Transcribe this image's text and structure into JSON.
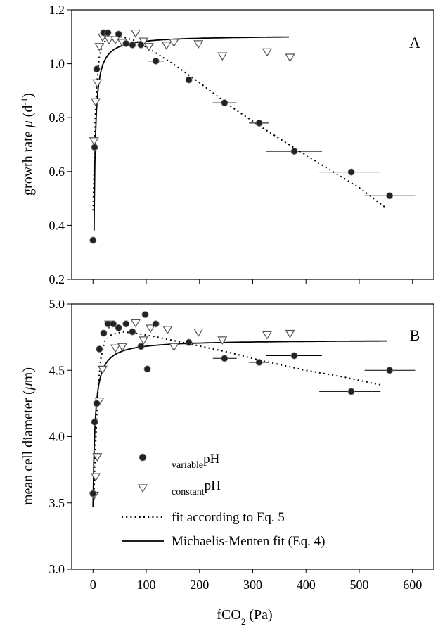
{
  "figure": {
    "x_label": {
      "main": "fCO",
      "sub": "2",
      "rest": " (Pa)"
    },
    "x_ticks": [
      "0",
      "100",
      "200",
      "300",
      "400",
      "500",
      "600"
    ],
    "x_tick_values": [
      0,
      100,
      200,
      300,
      400,
      500,
      600
    ]
  },
  "legend": {
    "variable": {
      "sub": "variable",
      "main": "pH"
    },
    "constant": {
      "sub": "constant",
      "main": "pH"
    },
    "eq5_label": "fit according to Eq. 5",
    "mm_label": "Michaelis-Menten fit (Eq. 4)"
  },
  "chart_data": [
    {
      "type": "scatter",
      "panel_label": "A",
      "ylabel": {
        "main": "growth rate ",
        "italic": "μ",
        "unit_open": " (d",
        "sup": "-1",
        "unit_close": ")"
      },
      "xlim": [
        -40,
        640
      ],
      "ylim": [
        0.2,
        1.2
      ],
      "x_ticks": [
        0,
        100,
        200,
        300,
        400,
        500,
        600
      ],
      "y_ticks": [
        0.2,
        0.4,
        0.6,
        0.8,
        1.0,
        1.2
      ],
      "y_tick_labels": [
        "0.2",
        "0.4",
        "0.6",
        "0.8",
        "1.0",
        "1.2"
      ],
      "series": [
        {
          "name": "variable pH",
          "marker": "filled-circle",
          "points": [
            {
              "x": 0,
              "y": 0.345
            },
            {
              "x": 3,
              "y": 0.69
            },
            {
              "x": 7,
              "y": 0.98
            },
            {
              "x": 20,
              "y": 1.115
            },
            {
              "x": 28,
              "y": 1.115
            },
            {
              "x": 48,
              "y": 1.11
            },
            {
              "x": 62,
              "y": 1.075
            },
            {
              "x": 74,
              "y": 1.07
            },
            {
              "x": 90,
              "y": 1.07
            },
            {
              "x": 118,
              "y": 1.01
            },
            {
              "x": 180,
              "y": 0.94
            },
            {
              "x": 247,
              "y": 0.855
            },
            {
              "x": 312,
              "y": 0.78
            },
            {
              "x": 378,
              "y": 0.675
            },
            {
              "x": 485,
              "y": 0.598
            },
            {
              "x": 557,
              "y": 0.51
            }
          ],
          "x_error": [
            {
              "x": 118,
              "lo": 103,
              "hi": 133
            },
            {
              "x": 247,
              "lo": 225,
              "hi": 270
            },
            {
              "x": 312,
              "lo": 293,
              "hi": 330
            },
            {
              "x": 378,
              "lo": 325,
              "hi": 430
            },
            {
              "x": 485,
              "lo": 425,
              "hi": 540
            },
            {
              "x": 557,
              "lo": 510,
              "hi": 605
            }
          ]
        },
        {
          "name": "constant pH",
          "marker": "open-triangle",
          "points": [
            {
              "x": 2,
              "y": 0.715
            },
            {
              "x": 5,
              "y": 0.86
            },
            {
              "x": 8,
              "y": 0.93
            },
            {
              "x": 12,
              "y": 1.065
            },
            {
              "x": 18,
              "y": 1.1
            },
            {
              "x": 30,
              "y": 1.09
            },
            {
              "x": 42,
              "y": 1.09
            },
            {
              "x": 55,
              "y": 1.08
            },
            {
              "x": 80,
              "y": 1.115
            },
            {
              "x": 95,
              "y": 1.085
            },
            {
              "x": 105,
              "y": 1.065
            },
            {
              "x": 138,
              "y": 1.07
            },
            {
              "x": 152,
              "y": 1.08
            },
            {
              "x": 198,
              "y": 1.075
            },
            {
              "x": 243,
              "y": 1.03
            },
            {
              "x": 327,
              "y": 1.045
            },
            {
              "x": 370,
              "y": 1.025
            }
          ]
        }
      ],
      "fits": {
        "mm": {
          "label": "Michaelis-Menten fit (Eq. 4)",
          "style": "solid",
          "vmax": 1.105,
          "k": 1.9,
          "x0": 1.0,
          "x_range": [
            2,
            370
          ]
        },
        "eq5": {
          "label": "fit according to Eq. 5",
          "style": "dotted",
          "points": [
            {
              "x": 0,
              "y": 0.455
            },
            {
              "x": 2,
              "y": 0.6
            },
            {
              "x": 4,
              "y": 0.79
            },
            {
              "x": 7,
              "y": 0.92
            },
            {
              "x": 12,
              "y": 1.03
            },
            {
              "x": 20,
              "y": 1.08
            },
            {
              "x": 35,
              "y": 1.1
            },
            {
              "x": 55,
              "y": 1.1
            },
            {
              "x": 80,
              "y": 1.085
            },
            {
              "x": 110,
              "y": 1.05
            },
            {
              "x": 150,
              "y": 1.0
            },
            {
              "x": 200,
              "y": 0.93
            },
            {
              "x": 260,
              "y": 0.84
            },
            {
              "x": 320,
              "y": 0.76
            },
            {
              "x": 380,
              "y": 0.685
            },
            {
              "x": 450,
              "y": 0.6
            },
            {
              "x": 500,
              "y": 0.54
            },
            {
              "x": 550,
              "y": 0.465
            }
          ]
        }
      }
    },
    {
      "type": "scatter",
      "panel_label": "B",
      "ylabel": {
        "main": "mean cell diameter (",
        "italic": "μ",
        "rest": "m)"
      },
      "xlim": [
        -40,
        640
      ],
      "ylim": [
        3.0,
        5.0
      ],
      "x_ticks": [
        0,
        100,
        200,
        300,
        400,
        500,
        600
      ],
      "y_ticks": [
        3.0,
        3.5,
        4.0,
        4.5,
        5.0
      ],
      "y_tick_labels": [
        "3.0",
        "3.5",
        "4.0",
        "4.5",
        "5.0"
      ],
      "series": [
        {
          "name": "variable pH",
          "marker": "filled-circle",
          "points": [
            {
              "x": 0,
              "y": 3.57
            },
            {
              "x": 3,
              "y": 4.11
            },
            {
              "x": 7,
              "y": 4.25
            },
            {
              "x": 12,
              "y": 4.66
            },
            {
              "x": 20,
              "y": 4.78
            },
            {
              "x": 28,
              "y": 4.85
            },
            {
              "x": 38,
              "y": 4.85
            },
            {
              "x": 48,
              "y": 4.82
            },
            {
              "x": 62,
              "y": 4.85
            },
            {
              "x": 74,
              "y": 4.79
            },
            {
              "x": 90,
              "y": 4.68
            },
            {
              "x": 98,
              "y": 4.92
            },
            {
              "x": 102,
              "y": 4.51
            },
            {
              "x": 118,
              "y": 4.85
            },
            {
              "x": 180,
              "y": 4.71
            },
            {
              "x": 247,
              "y": 4.59
            },
            {
              "x": 312,
              "y": 4.56
            },
            {
              "x": 378,
              "y": 4.61
            },
            {
              "x": 485,
              "y": 4.34
            },
            {
              "x": 557,
              "y": 4.5
            }
          ],
          "x_error": [
            {
              "x": 102,
              "lo": 96,
              "hi": 108
            },
            {
              "x": 247,
              "lo": 225,
              "hi": 270
            },
            {
              "x": 312,
              "lo": 293,
              "hi": 330
            },
            {
              "x": 378,
              "lo": 325,
              "hi": 430
            },
            {
              "x": 485,
              "lo": 425,
              "hi": 540
            },
            {
              "x": 557,
              "lo": 510,
              "hi": 605
            }
          ]
        },
        {
          "name": "constant pH",
          "marker": "open-triangle",
          "points": [
            {
              "x": 2,
              "y": 3.56
            },
            {
              "x": 5,
              "y": 3.7
            },
            {
              "x": 8,
              "y": 3.85
            },
            {
              "x": 12,
              "y": 4.27
            },
            {
              "x": 18,
              "y": 4.51
            },
            {
              "x": 30,
              "y": 4.85
            },
            {
              "x": 42,
              "y": 4.67
            },
            {
              "x": 55,
              "y": 4.68
            },
            {
              "x": 80,
              "y": 4.86
            },
            {
              "x": 95,
              "y": 4.73
            },
            {
              "x": 108,
              "y": 4.82
            },
            {
              "x": 140,
              "y": 4.81
            },
            {
              "x": 152,
              "y": 4.68
            },
            {
              "x": 198,
              "y": 4.79
            },
            {
              "x": 243,
              "y": 4.73
            },
            {
              "x": 327,
              "y": 4.77
            },
            {
              "x": 370,
              "y": 4.78
            }
          ]
        }
      ],
      "fits": {
        "mm": {
          "label": "Michaelis-Menten fit (Eq. 4)",
          "style": "solid",
          "vmax": 4.73,
          "vmin": 3.47,
          "k": 4.0,
          "x_range": [
            0,
            555
          ]
        },
        "eq5": {
          "label": "fit according to Eq. 5",
          "style": "dotted",
          "points": [
            {
              "x": 0,
              "y": 3.47
            },
            {
              "x": 2,
              "y": 3.6
            },
            {
              "x": 4,
              "y": 3.85
            },
            {
              "x": 7,
              "y": 4.15
            },
            {
              "x": 10,
              "y": 4.4
            },
            {
              "x": 15,
              "y": 4.6
            },
            {
              "x": 22,
              "y": 4.72
            },
            {
              "x": 35,
              "y": 4.77
            },
            {
              "x": 55,
              "y": 4.79
            },
            {
              "x": 80,
              "y": 4.78
            },
            {
              "x": 120,
              "y": 4.75
            },
            {
              "x": 180,
              "y": 4.7
            },
            {
              "x": 250,
              "y": 4.64
            },
            {
              "x": 320,
              "y": 4.57
            },
            {
              "x": 400,
              "y": 4.5
            },
            {
              "x": 470,
              "y": 4.45
            },
            {
              "x": 540,
              "y": 4.39
            }
          ]
        }
      }
    }
  ]
}
